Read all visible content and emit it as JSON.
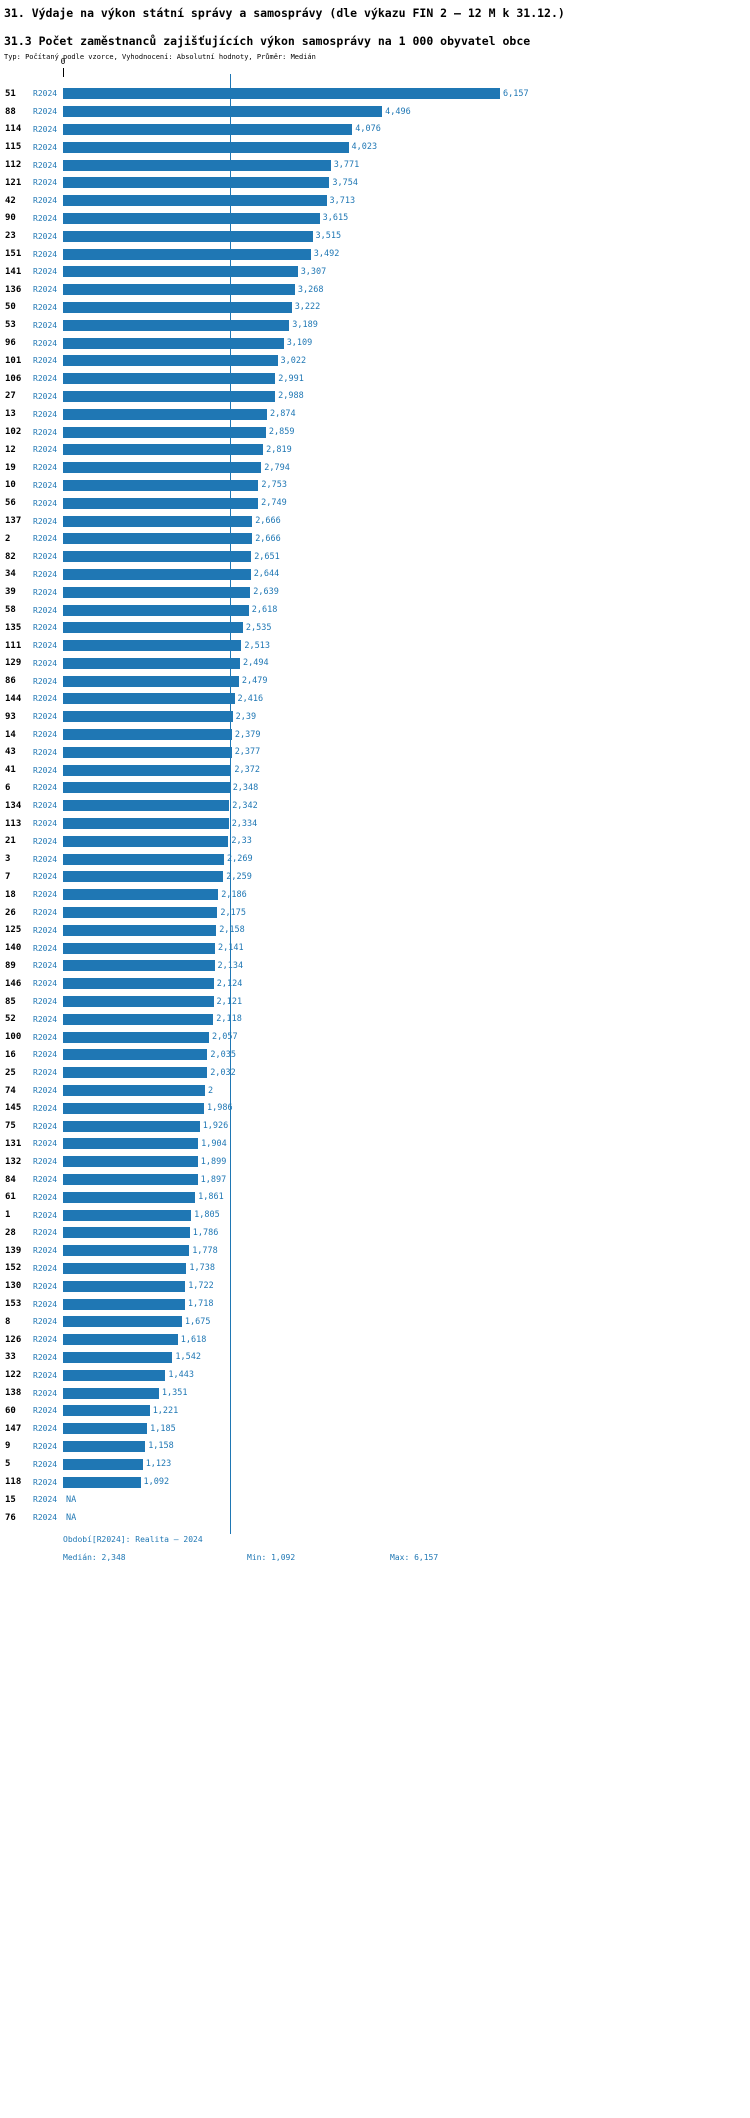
{
  "header": {
    "title": "31. Výdaje na výkon státní správy a samosprávy (dle výkazu FIN 2 – 12 M k 31.12.)",
    "subtitle": "31.3 Počet zaměstnanců zajišťujících výkon samosprávy na 1 000 obyvatel obce",
    "type_line": "Typ: Počítaný podle vzorce, Vyhodnocení: Absolutní hodnoty, Průměr: Medián"
  },
  "axis": {
    "zero_label": "0"
  },
  "chart_data": {
    "type": "bar",
    "orientation": "horizontal",
    "title": "31.3 Počet zaměstnanců zajišťujících výkon samosprávy na 1 000 obyvatel obce",
    "series_name": "R2024",
    "na_label": "NA",
    "bar_color": "#1f77b4",
    "median_line": true,
    "median": 2.348,
    "min": 1.092,
    "max": 6.157,
    "xlim": [
      0,
      6.6
    ],
    "categories": [
      "51",
      "88",
      "114",
      "115",
      "112",
      "121",
      "42",
      "90",
      "23",
      "151",
      "141",
      "136",
      "50",
      "53",
      "96",
      "101",
      "106",
      "27",
      "13",
      "102",
      "12",
      "19",
      "10",
      "56",
      "137",
      "2",
      "82",
      "34",
      "39",
      "58",
      "135",
      "111",
      "129",
      "86",
      "144",
      "93",
      "14",
      "43",
      "41",
      "6",
      "134",
      "113",
      "21",
      "3",
      "7",
      "18",
      "26",
      "125",
      "140",
      "89",
      "146",
      "85",
      "52",
      "100",
      "16",
      "25",
      "74",
      "145",
      "75",
      "131",
      "132",
      "84",
      "61",
      "1",
      "28",
      "139",
      "152",
      "130",
      "153",
      "8",
      "126",
      "33",
      "122",
      "138",
      "60",
      "147",
      "9",
      "5",
      "118",
      "15",
      "76"
    ],
    "values": [
      6.157,
      4.496,
      4.076,
      4.023,
      3.771,
      3.754,
      3.713,
      3.615,
      3.515,
      3.492,
      3.307,
      3.268,
      3.222,
      3.189,
      3.109,
      3.022,
      2.991,
      2.988,
      2.874,
      2.859,
      2.819,
      2.794,
      2.753,
      2.749,
      2.666,
      2.666,
      2.651,
      2.644,
      2.639,
      2.618,
      2.535,
      2.513,
      2.494,
      2.479,
      2.416,
      2.39,
      2.379,
      2.377,
      2.372,
      2.348,
      2.342,
      2.334,
      2.33,
      2.269,
      2.259,
      2.186,
      2.175,
      2.158,
      2.141,
      2.134,
      2.124,
      2.121,
      2.118,
      2.057,
      2.035,
      2.032,
      2,
      1.986,
      1.926,
      1.904,
      1.899,
      1.897,
      1.861,
      1.805,
      1.786,
      1.778,
      1.738,
      1.722,
      1.718,
      1.675,
      1.618,
      1.542,
      1.443,
      1.351,
      1.221,
      1.185,
      1.158,
      1.123,
      1.092,
      null,
      null
    ],
    "value_labels": [
      "6,157",
      "4,496",
      "4,076",
      "4,023",
      "3,771",
      "3,754",
      "3,713",
      "3,615",
      "3,515",
      "3,492",
      "3,307",
      "3,268",
      "3,222",
      "3,189",
      "3,109",
      "3,022",
      "2,991",
      "2,988",
      "2,874",
      "2,859",
      "2,819",
      "2,794",
      "2,753",
      "2,749",
      "2,666",
      "2,666",
      "2,651",
      "2,644",
      "2,639",
      "2,618",
      "2,535",
      "2,513",
      "2,494",
      "2,479",
      "2,416",
      "2,39",
      "2,379",
      "2,377",
      "2,372",
      "2,348",
      "2,342",
      "2,334",
      "2,33",
      "2,269",
      "2,259",
      "2,186",
      "2,175",
      "2,158",
      "2,141",
      "2,134",
      "2,124",
      "2,121",
      "2,118",
      "2,057",
      "2,035",
      "2,032",
      "2",
      "1,986",
      "1,926",
      "1,904",
      "1,899",
      "1,897",
      "1,861",
      "1,805",
      "1,786",
      "1,778",
      "1,738",
      "1,722",
      "1,718",
      "1,675",
      "1,618",
      "1,542",
      "1,443",
      "1,351",
      "1,221",
      "1,185",
      "1,158",
      "1,123",
      "1,092",
      "NA",
      "NA"
    ]
  },
  "footer": {
    "period_line": "Období[R2024]: Realita – 2024",
    "median_label": "Medián: 2,348",
    "min_label": "Min: 1,092",
    "max_label": "Max: 6,157"
  }
}
